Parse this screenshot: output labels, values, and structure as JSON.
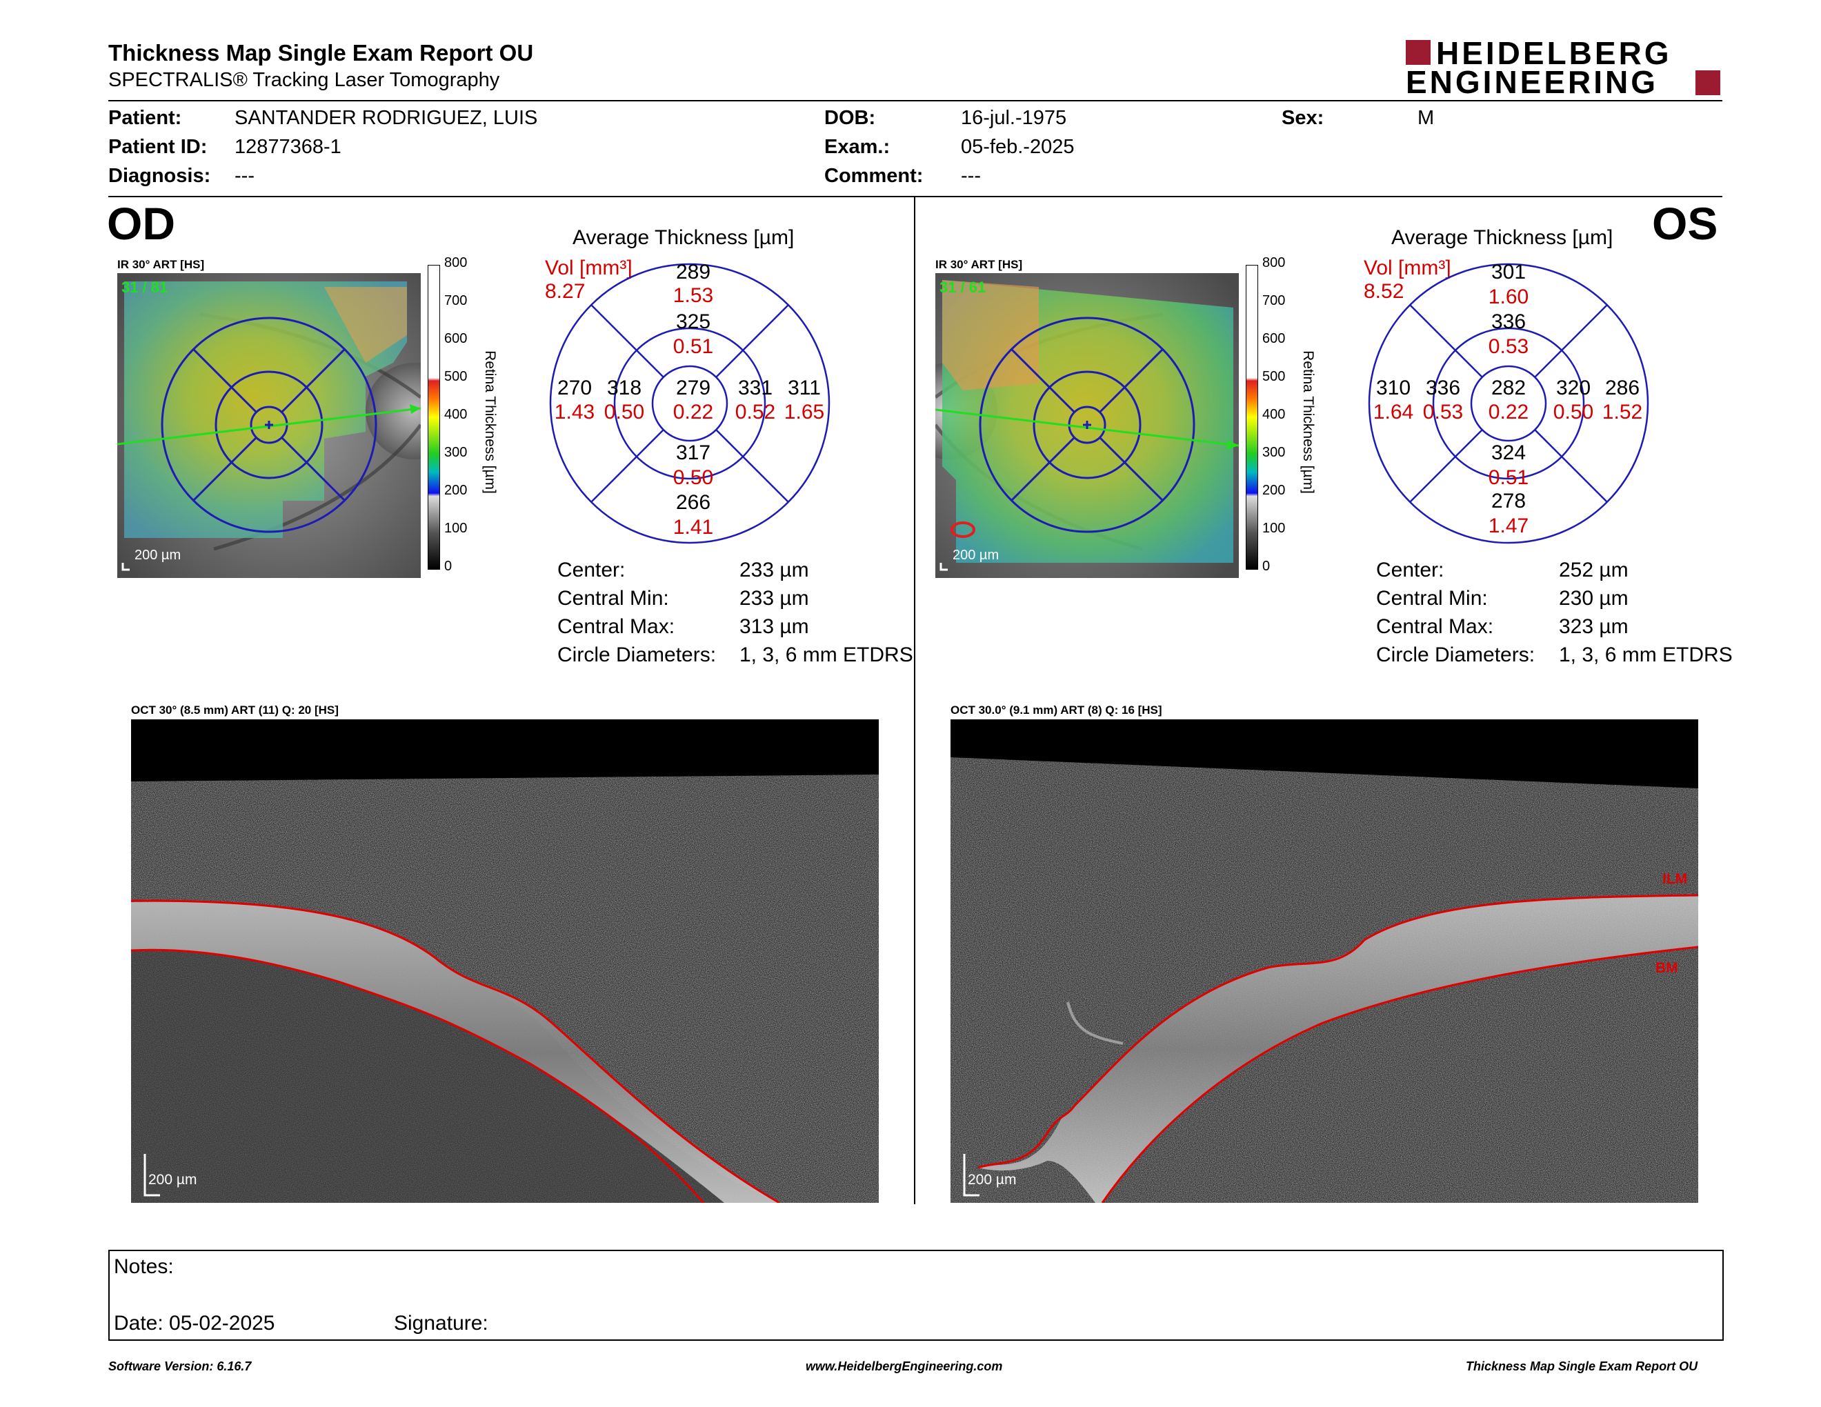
{
  "header": {
    "title": "Thickness Map Single Exam Report OU",
    "subtitle": "SPECTRALIS® Tracking Laser Tomography",
    "logo_line1": "HEIDELBERG",
    "logo_line2": "ENGINEERING",
    "logo_color": "#9b1b30"
  },
  "patient": {
    "patient_label": "Patient:",
    "patient_value": "SANTANDER RODRIGUEZ, LUIS",
    "id_label": "Patient ID:",
    "id_value": "12877368-1",
    "diagnosis_label": "Diagnosis:",
    "diagnosis_value": "---",
    "dob_label": "DOB:",
    "dob_value": "16-jul.-1975",
    "exam_label": "Exam.:",
    "exam_value": "05-feb.-2025",
    "comment_label": "Comment:",
    "comment_value": "---",
    "sex_label": "Sex:",
    "sex_value": "M"
  },
  "od": {
    "eye_label": "OD",
    "ir_header": "IR 30° ART [HS]",
    "ir_overlay": "31 / 81",
    "scale_label": "200 µm",
    "colorbar_ticks": [
      "800",
      "700",
      "600",
      "500",
      "400",
      "300",
      "200",
      "100",
      "0"
    ],
    "colorbar_title": "Retina Thickness [µm]",
    "avg_title": "Average Thickness [µm]",
    "vol_label": "Vol [mm³]",
    "vol_total": "8.27",
    "center": {
      "thick": "279",
      "vol": "0.22"
    },
    "inner_sup": {
      "thick": "325",
      "vol": "0.51"
    },
    "inner_inf": {
      "thick": "317",
      "vol": "0.50"
    },
    "inner_left": {
      "thick": "318",
      "vol": "0.50"
    },
    "inner_right": {
      "thick": "331",
      "vol": "0.52"
    },
    "outer_sup": {
      "thick": "289",
      "vol": "1.53"
    },
    "outer_inf": {
      "thick": "266",
      "vol": "1.41"
    },
    "outer_left": {
      "thick": "270",
      "vol": "1.43"
    },
    "outer_right": {
      "thick": "311",
      "vol": "1.65"
    },
    "stats": {
      "center_label": "Center:",
      "center_value": "233 µm",
      "min_label": "Central Min:",
      "min_value": "233 µm",
      "max_label": "Central Max:",
      "max_value": "313 µm",
      "diam_label": "Circle Diameters:",
      "diam_value": "1, 3, 6 mm ETDRS"
    },
    "oct_header": "OCT 30° (8.5 mm) ART (11) Q: 20 [HS]",
    "oct_scale": "200 µm"
  },
  "os": {
    "eye_label": "OS",
    "ir_header": "IR 30° ART [HS]",
    "ir_overlay": "31 / 61",
    "scale_label": "200 µm",
    "colorbar_ticks": [
      "800",
      "700",
      "600",
      "500",
      "400",
      "300",
      "200",
      "100",
      "0"
    ],
    "colorbar_title": "Retina Thickness [µm]",
    "avg_title": "Average Thickness [µm]",
    "vol_label": "Vol [mm³]",
    "vol_total": "8.52",
    "center": {
      "thick": "282",
      "vol": "0.22"
    },
    "inner_sup": {
      "thick": "336",
      "vol": "0.53"
    },
    "inner_inf": {
      "thick": "324",
      "vol": "0.51"
    },
    "inner_left": {
      "thick": "336",
      "vol": "0.53"
    },
    "inner_right": {
      "thick": "320",
      "vol": "0.50"
    },
    "outer_sup": {
      "thick": "301",
      "vol": "1.60"
    },
    "outer_inf": {
      "thick": "278",
      "vol": "1.47"
    },
    "outer_left": {
      "thick": "310",
      "vol": "1.64"
    },
    "outer_right": {
      "thick": "286",
      "vol": "1.52"
    },
    "stats": {
      "center_label": "Center:",
      "center_value": "252 µm",
      "min_label": "Central Min:",
      "min_value": "230 µm",
      "max_label": "Central Max:",
      "max_value": "323 µm",
      "diam_label": "Circle Diameters:",
      "diam_value": "1, 3, 6 mm ETDRS"
    },
    "oct_header": "OCT 30.0° (9.1 mm) ART (8) Q: 16 [HS]",
    "oct_scale": "200 µm",
    "ilm_label": "ILM",
    "bm_label": "BM"
  },
  "notes": {
    "notes_label": "Notes:",
    "date_label": "Date: 05-02-2025",
    "signature_label": "Signature:"
  },
  "footer": {
    "software": "Software Version: 6.16.7",
    "website": "www.HeidelbergEngineering.com",
    "report": "Thickness Map Single Exam Report OU"
  },
  "colors": {
    "value_red": "#d40000",
    "grid_blue": "#1c1cb4",
    "segmentation_red": "#e00000",
    "scan_line_green": "#22dd22"
  }
}
